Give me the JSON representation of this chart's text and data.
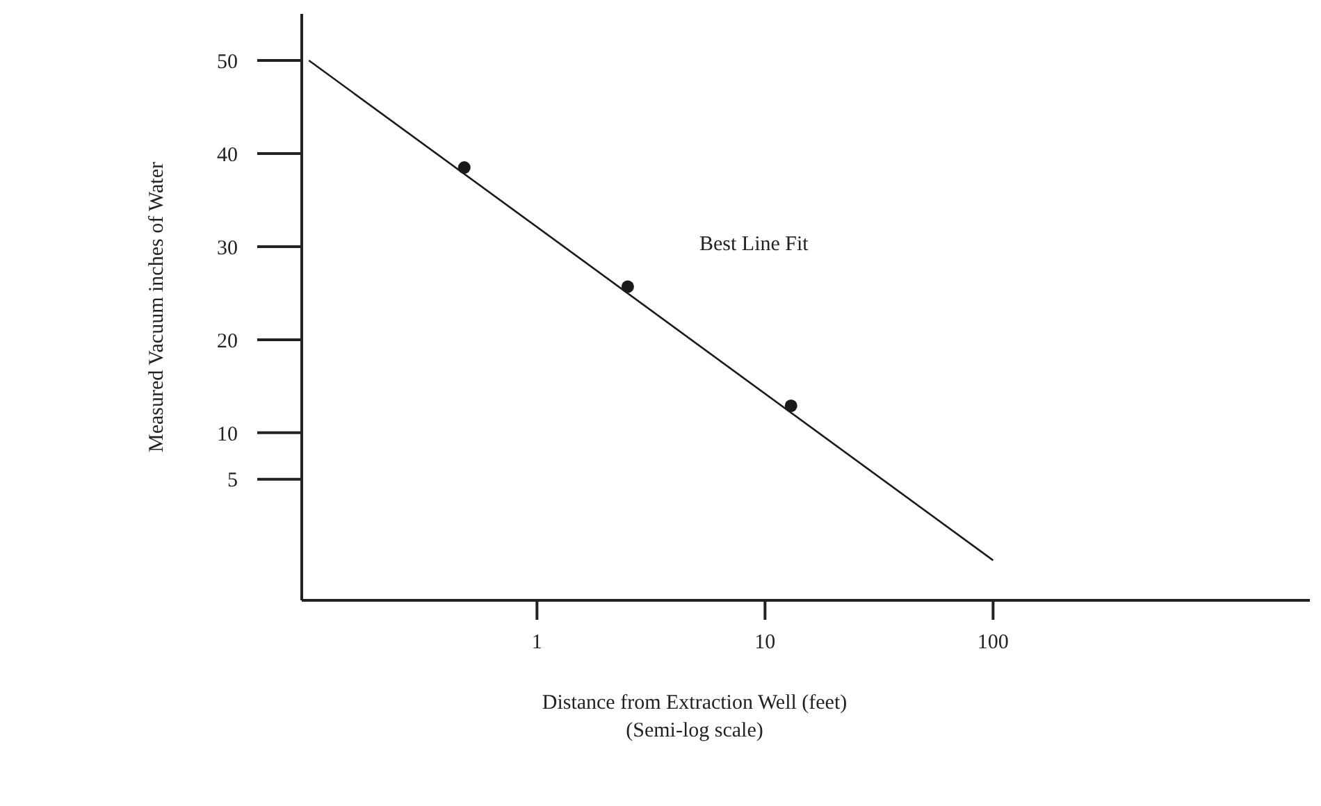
{
  "chart_data": {
    "type": "scatter",
    "xlabel": "Distance from Extraction Well (feet)\n(Semi-log scale)",
    "ylabel": "Measured Vacuum inches of Water",
    "log": "x",
    "xlim": [
      0.093,
      2450
    ],
    "xticks": [
      1,
      10,
      100
    ],
    "ylim": [
      -8,
      55
    ],
    "yticks": [
      50,
      40,
      30,
      20,
      10,
      5
    ],
    "grid": false,
    "series": [
      {
        "color": "#1a1a1a",
        "marker": "circle",
        "x": [
          0.48,
          2.5,
          13
        ],
        "values": [
          38.5,
          25.7,
          12.9
        ]
      },
      {
        "type": "line",
        "color": "#1a1a1a",
        "marker": "none",
        "line_style": "solid",
        "x": [
          0.1,
          100
        ],
        "values": [
          50,
          -3.7
        ]
      }
    ],
    "annotations": [
      "Best Line Fit"
    ]
  }
}
